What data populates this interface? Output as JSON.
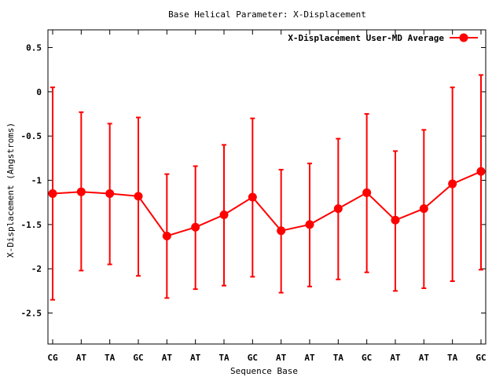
{
  "chart_data": {
    "type": "line",
    "title": "Base  Helical Parameter: X-Displacement",
    "xlabel": "Sequence Base",
    "ylabel": "X-Displacement (Angstroms)",
    "categories": [
      "CG",
      "AT",
      "TA",
      "GC",
      "AT",
      "AT",
      "TA",
      "GC",
      "AT",
      "AT",
      "TA",
      "GC",
      "AT",
      "AT",
      "TA",
      "GC"
    ],
    "ylim": [
      -2.85,
      0.7
    ],
    "yticks": [
      0.5,
      0,
      -0.5,
      -1,
      -1.5,
      -2,
      -2.5
    ],
    "ytick_labels": [
      "0.5",
      "0",
      "-0.5",
      "-1",
      "-1.5",
      "-2",
      "-2.5"
    ],
    "grid": false,
    "legend_position": "top-right",
    "series": [
      {
        "name": "X-Displacement User-MD Average",
        "color": "#ff0000",
        "values": [
          -1.15,
          -1.13,
          -1.15,
          -1.18,
          -1.63,
          -1.53,
          -1.39,
          -1.19,
          -1.57,
          -1.5,
          -1.32,
          -1.14,
          -1.45,
          -1.32,
          -1.04,
          -0.9
        ],
        "error_lower": [
          -2.35,
          -2.02,
          -1.95,
          -2.08,
          -2.33,
          -2.23,
          -2.19,
          -2.09,
          -2.27,
          -2.2,
          -2.12,
          -2.04,
          -2.25,
          -2.22,
          -2.14,
          -2.01
        ],
        "error_upper": [
          0.05,
          -0.23,
          -0.36,
          -0.29,
          -0.93,
          -0.84,
          -0.6,
          -0.3,
          -0.88,
          -0.81,
          -0.53,
          -0.25,
          -0.67,
          -0.43,
          0.05,
          0.19
        ]
      }
    ]
  }
}
